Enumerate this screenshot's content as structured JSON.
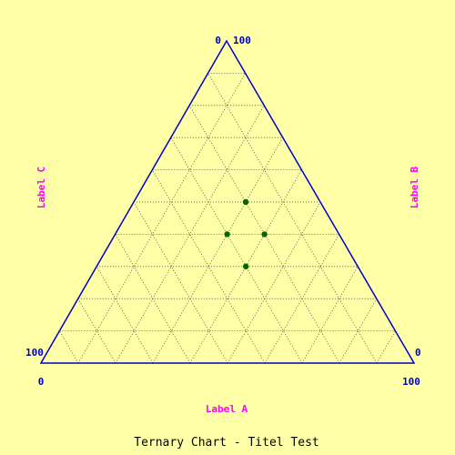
{
  "chart_data": {
    "type": "scatter",
    "title": "Ternary Chart - Titel Test",
    "axes": {
      "a": {
        "label": "Label A",
        "min_label": "0",
        "max_label": "100"
      },
      "b": {
        "label": "Label B",
        "min_label": "0",
        "max_label": "100"
      },
      "c": {
        "label": "Label C",
        "min_label": "0",
        "max_label": "100"
      }
    },
    "grid": true,
    "grid_step": 10,
    "points": [
      {
        "a": 30,
        "b": 50,
        "c": 20
      },
      {
        "a": 30,
        "b": 40,
        "c": 30
      },
      {
        "a": 40,
        "b": 40,
        "c": 20
      },
      {
        "a": 40,
        "b": 30,
        "c": 30
      }
    ],
    "colors": {
      "background": "#ffffa8",
      "frame": "#0000cc",
      "grid": "#444444",
      "point": "#006600",
      "axis_label": "#ff00ff",
      "tick_label": "#0000cc",
      "title": "#000000"
    }
  }
}
